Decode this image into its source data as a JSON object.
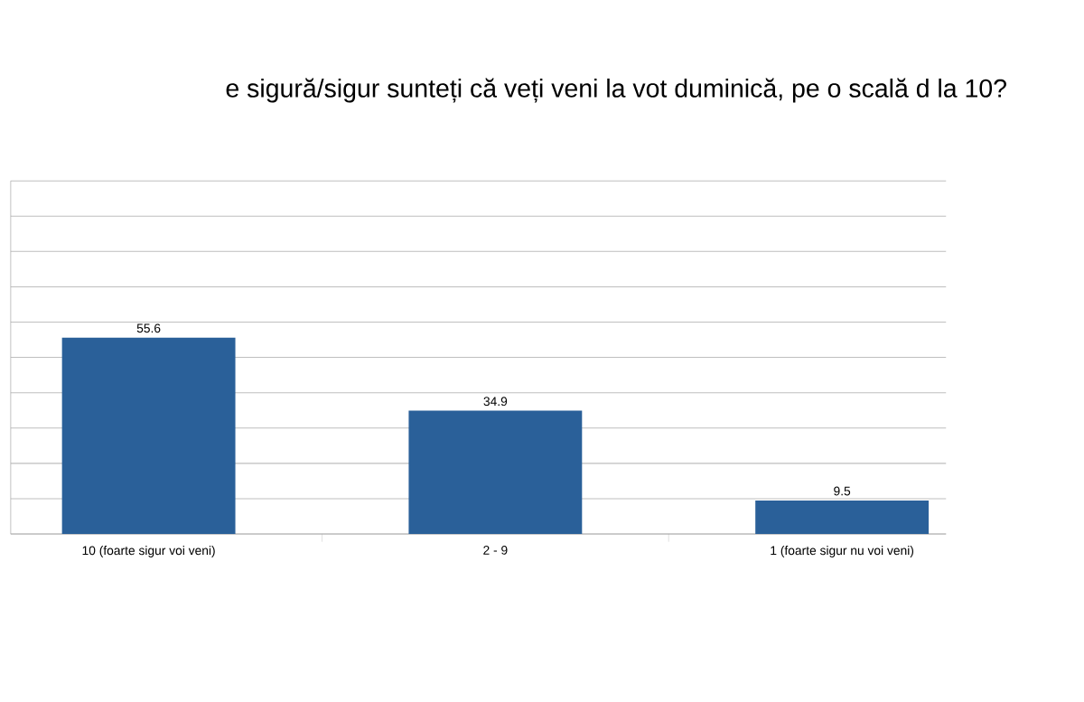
{
  "chart_data": {
    "type": "bar",
    "title": "e sigură/sigur sunteți că veți veni la vot duminică, pe o scală d la 10?",
    "categories": [
      "10 (foarte sigur voi veni)",
      "2 - 9",
      "1 (foarte sigur nu voi veni)"
    ],
    "values": [
      55.6,
      34.9,
      9.5
    ],
    "color": "#2a6099",
    "ylim": [
      0,
      100
    ],
    "yticks": [
      {
        "value": 0,
        "label": null
      },
      {
        "value": 10,
        "label": null
      },
      {
        "value": 20,
        "label": null
      },
      {
        "value": 30,
        "label": null
      },
      {
        "value": 40,
        "label": null
      },
      {
        "value": 50,
        "label": null
      },
      {
        "value": 60,
        "label": null
      },
      {
        "value": 70,
        "label": null
      },
      {
        "value": 80,
        "label": null
      },
      {
        "value": 90,
        "label": null
      },
      {
        "value": 100,
        "label": null
      }
    ],
    "tick_labels": "x",
    "grid": "y",
    "data_labels": true
  }
}
